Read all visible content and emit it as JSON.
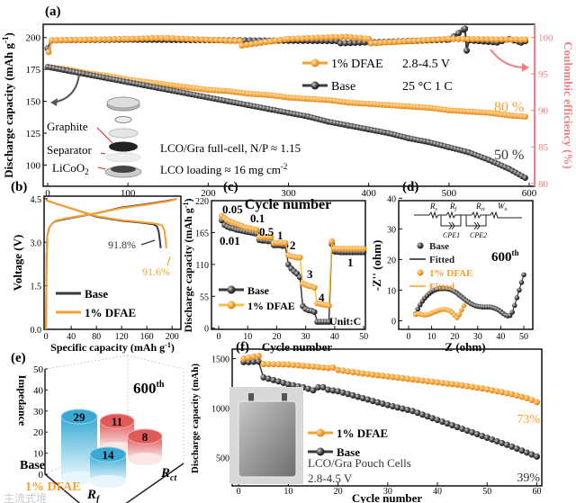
{
  "colors": {
    "dfae": "#f7a030",
    "base": "#3a3a3a",
    "ce_axis": "#f08080",
    "red_cyl": "#e05a5a",
    "blue_cyl": "#39a9d3"
  },
  "chart_data": [
    {
      "id": "a",
      "panel_label": "(a)",
      "type": "line",
      "xlabel": "Cycle number",
      "ylabel": "Discharge capacity (mAh g",
      "ylabel_sup": "-1",
      "ylabel_end": ")",
      "y2label": "Coulombic efficiency (%)",
      "xlim": [
        -5.6,
        606.7
      ],
      "ylim": [
        83.4,
        210.4
      ],
      "y2lim": [
        79.6,
        101.8
      ],
      "xticks": [
        0,
        100,
        200,
        300,
        400,
        500,
        600
      ],
      "yticks": [
        100,
        125,
        150,
        175,
        200
      ],
      "y2ticks": [
        80,
        85,
        90,
        95,
        100
      ],
      "legend": [
        {
          "name": "1% DFAE",
          "note": "2.8-4.5 V"
        },
        {
          "name": "Base",
          "note": "25 °C  1 C"
        }
      ],
      "annotations": {
        "dfae_retention": "80 %",
        "base_retention": "50 %",
        "cell_info": "LCO/Gra full-cell, N/P ≈ 1.15",
        "loading": "LCO loading ≈ 16 mg cm",
        "loading_sup": "-2",
        "graphite": "Graphite",
        "separator": "Separator",
        "licoo2": "LiCoO",
        "licoo2_sub": "2"
      },
      "series": [
        {
          "name": "1% DFAE",
          "axis": "capacity",
          "x": [
            0,
            25,
            50,
            75,
            100,
            125,
            150,
            175,
            200,
            225,
            250,
            275,
            300,
            325,
            350,
            375,
            400,
            425,
            450,
            475,
            500,
            525,
            550,
            575,
            595
          ],
          "y": [
            177,
            175,
            172,
            170,
            167,
            165,
            163,
            161,
            159,
            158,
            156,
            155,
            153,
            152,
            151,
            149,
            148,
            147,
            146,
            145,
            143,
            142,
            141,
            139,
            138
          ]
        },
        {
          "name": "Base",
          "axis": "capacity",
          "x": [
            0,
            25,
            50,
            75,
            100,
            125,
            150,
            175,
            200,
            225,
            250,
            275,
            300,
            325,
            350,
            375,
            400,
            425,
            450,
            475,
            500,
            525,
            550,
            575,
            595
          ],
          "y": [
            177,
            174,
            171,
            168,
            165,
            162,
            159,
            156,
            153,
            150,
            147,
            144,
            141,
            138,
            134,
            131,
            128,
            125,
            121,
            118,
            114,
            110,
            104,
            97,
            90
          ]
        },
        {
          "name": "Base CE",
          "axis": "ce",
          "x": [
            0,
            5,
            100,
            240,
            360,
            365,
            500,
            520,
            522,
            525,
            560,
            575,
            590,
            595
          ],
          "y": [
            98.5,
            99.6,
            99.7,
            99.6,
            99.5,
            99.2,
            99.7,
            101.2,
            98.2,
            99.6,
            99.3,
            99.8,
            99.3,
            99.5
          ]
        },
        {
          "name": "1% DFAE CE",
          "axis": "ce",
          "x": [
            1,
            5,
            100,
            130,
            150,
            240,
            242,
            300,
            372,
            400,
            403,
            500,
            595
          ],
          "y": [
            98.0,
            99.6,
            99.8,
            99.9,
            99.9,
            99.5,
            98.9,
            99.8,
            100.1,
            99.8,
            99.2,
            99.8,
            99.7
          ]
        }
      ]
    },
    {
      "id": "b",
      "panel_label": "(b)",
      "type": "line",
      "xlabel": "Specific capacity (mAh g",
      "xlabel_sup": "-1",
      "xlabel_end": ")",
      "ylabel": "Voltage (V)",
      "xlim": [
        -3,
        214
      ],
      "ylim": [
        0,
        4.59
      ],
      "xticks": [
        0,
        40,
        80,
        120,
        160,
        200
      ],
      "yticks": [
        0.0,
        1.5,
        3.0,
        4.5
      ],
      "legend": [
        {
          "name": "Base"
        },
        {
          "name": "1% DFAE"
        }
      ],
      "annotations": {
        "base_ce": "91.8%",
        "dfae_ce": "91.6%"
      },
      "series": [
        {
          "name": "Base charge",
          "x": [
            0,
            1,
            2,
            5,
            10,
            15,
            30,
            60,
            80,
            120,
            160,
            190,
            205
          ],
          "y": [
            0,
            2.5,
            3.2,
            3.5,
            3.65,
            3.73,
            3.8,
            3.92,
            4.0,
            4.2,
            4.32,
            4.42,
            4.48
          ]
        },
        {
          "name": "Base discharge",
          "x": [
            0,
            20,
            50,
            80,
            120,
            150,
            170,
            176,
            179,
            181,
            182
          ],
          "y": [
            4.45,
            4.3,
            4.1,
            3.88,
            3.74,
            3.68,
            3.62,
            3.55,
            3.35,
            3.0,
            2.8
          ]
        },
        {
          "name": "1% DFAE charge",
          "x": [
            0,
            1,
            2,
            5,
            10,
            15,
            30,
            60,
            80,
            120,
            160,
            195,
            208
          ],
          "y": [
            0,
            2.5,
            3.2,
            3.5,
            3.65,
            3.74,
            3.82,
            3.93,
            4.0,
            4.18,
            4.3,
            4.42,
            4.5
          ]
        },
        {
          "name": "1% DFAE discharge",
          "x": [
            0,
            20,
            50,
            80,
            120,
            150,
            175,
            184,
            188,
            190,
            191
          ],
          "y": [
            4.45,
            4.3,
            4.1,
            3.9,
            3.76,
            3.7,
            3.64,
            3.58,
            3.4,
            3.0,
            2.8
          ]
        }
      ]
    },
    {
      "id": "c",
      "panel_label": "(c)",
      "type": "line",
      "xlabel": "Cycle number",
      "ylabel": "Discharge capacity (mAh g",
      "ylabel_sup": "-1",
      "ylabel_end": ")",
      "xlim": [
        -2.5,
        50.6
      ],
      "ylim": [
        -2,
        220
      ],
      "xticks": [
        0,
        10,
        20,
        30,
        40,
        50
      ],
      "yticks": [
        0,
        55,
        110,
        165,
        220
      ],
      "legend": [
        {
          "name": "Base"
        },
        {
          "name": "1% DFAE"
        }
      ],
      "rate_labels": [
        "0.01",
        "0.05",
        "0.1",
        "0.5",
        "1",
        "2",
        "3",
        "4",
        "1"
      ],
      "unit": "Unit:C",
      "series": [
        {
          "name": "Base",
          "x": [
            1,
            2,
            3,
            4,
            5,
            6,
            7,
            8,
            9,
            10,
            11,
            12,
            13,
            14,
            15,
            16,
            17,
            18,
            19,
            20,
            21,
            22,
            23,
            24,
            25,
            26,
            27,
            28,
            29,
            30,
            31,
            32,
            33,
            34,
            35,
            36,
            37,
            38,
            39,
            40,
            41,
            42,
            43,
            44,
            45,
            46,
            47,
            48,
            49,
            50
          ],
          "y": [
            186,
            178,
            175,
            173,
            172,
            170,
            169,
            168,
            167,
            166,
            165,
            164,
            163,
            152,
            151,
            151,
            150,
            150,
            143,
            143,
            143,
            142,
            142,
            110,
            103,
            98,
            94,
            88,
            38,
            33,
            31,
            30,
            28,
            11,
            11,
            11,
            11,
            11,
            145,
            132,
            132,
            131,
            131,
            131,
            131,
            131,
            131,
            131,
            131,
            131
          ]
        },
        {
          "name": "1% DFAE",
          "x": [
            1,
            2,
            3,
            4,
            5,
            6,
            7,
            8,
            9,
            10,
            11,
            12,
            13,
            14,
            15,
            16,
            17,
            18,
            19,
            20,
            21,
            22,
            23,
            24,
            25,
            26,
            27,
            28,
            29,
            30,
            31,
            32,
            33,
            34,
            35,
            36,
            37,
            38,
            39,
            40,
            41,
            42,
            43,
            44,
            45,
            46,
            47,
            48,
            49,
            50
          ],
          "y": [
            194,
            190,
            186,
            184,
            182,
            180,
            178,
            176,
            174,
            173,
            172,
            171,
            170,
            157,
            157,
            157,
            157,
            157,
            147,
            147,
            147,
            147,
            147,
            126,
            124,
            123,
            122,
            122,
            77,
            75,
            73,
            72,
            70,
            43,
            42,
            41,
            40,
            39,
            150,
            138,
            137,
            137,
            137,
            137,
            137,
            137,
            137,
            137,
            137,
            137
          ]
        }
      ]
    },
    {
      "id": "d",
      "panel_label": "(d)",
      "type": "scatter",
      "xlabel": "Z (ohm)",
      "ylabel": "-Z'' (ohm)",
      "xlim": [
        -4.3,
        53.9
      ],
      "ylim": [
        -2.8,
        39.2
      ],
      "xticks": [
        0,
        10,
        20,
        30,
        40,
        50
      ],
      "yticks": [
        0,
        10,
        20,
        30,
        40
      ],
      "legend": [
        {
          "name": "Base"
        },
        {
          "name": "Fitted"
        },
        {
          "name": "1% DFAE"
        },
        {
          "name": "Fitted"
        }
      ],
      "cycle_label": "600",
      "cycle_sup": "th",
      "circuit": {
        "rs": "R",
        "rs_sub": "s",
        "rf": "R",
        "rf_sub": "f",
        "rct": "R",
        "rct_sub": "ct",
        "wo": "W",
        "wo_sub": "o",
        "cpe1": "CPE1",
        "cpe2": "CPE2"
      },
      "series": [
        {
          "name": "Base",
          "x": [
            3,
            4,
            5,
            6,
            7,
            8,
            9,
            10,
            11,
            12,
            13,
            14,
            15,
            16,
            17,
            18,
            19,
            20,
            21,
            22,
            23,
            24,
            25,
            26,
            27,
            28,
            29,
            30,
            31,
            32,
            33,
            34,
            35,
            36,
            37,
            38,
            39,
            40,
            41,
            42,
            43,
            44,
            45,
            46,
            47,
            48,
            49,
            50
          ],
          "y": [
            2.2,
            3.8,
            5.2,
            6.4,
            7.4,
            8.2,
            8.9,
            9.5,
            9.9,
            10.2,
            10.4,
            10.5,
            10.5,
            10.5,
            10.4,
            10.2,
            9.9,
            9.5,
            9.0,
            8.4,
            7.8,
            7.2,
            6.6,
            6.1,
            5.6,
            5.2,
            4.9,
            4.7,
            4.6,
            4.5,
            4.5,
            4.5,
            4.5,
            4.4,
            4.2,
            3.9,
            3.5,
            3.0,
            2.4,
            1.9,
            1.6,
            1.7,
            2.8,
            5.0,
            7.5,
            10,
            12.5,
            15
          ]
        },
        {
          "name": "1% DFAE",
          "x": [
            3,
            4,
            5,
            6,
            7,
            8,
            9,
            10,
            11,
            12,
            13,
            14,
            15,
            16,
            17,
            18,
            19,
            20,
            21,
            22,
            23,
            24
          ],
          "y": [
            2.0,
            2.3,
            2.2,
            2.0,
            1.9,
            2.0,
            2.2,
            2.5,
            2.8,
            3.1,
            3.4,
            3.6,
            3.7,
            3.7,
            3.5,
            3.2,
            2.6,
            1.8,
            1.0,
            2.0,
            3.5,
            5.0
          ]
        }
      ]
    },
    {
      "id": "e",
      "panel_label": "(e)",
      "type": "bar",
      "zlabel": "Impedance",
      "zticks": [
        0,
        10,
        20,
        30,
        40,
        50
      ],
      "cycle_label": "600",
      "cycle_sup": "th",
      "categories": [
        "Base",
        "1% DFAE"
      ],
      "components": [
        "R",
        "R"
      ],
      "component_subs": [
        "f",
        "ct"
      ],
      "values": {
        "Base_Rf": 29,
        "DFAE_Rf": 14,
        "Base_Rct": 11,
        "DFAE_Rct": 8
      },
      "value_labels": [
        "29",
        "14",
        "11",
        "8"
      ]
    },
    {
      "id": "f",
      "panel_label": "(f)",
      "type": "line",
      "xlabel": "Cycle number",
      "ylabel": "Discharge capacity (mAh)",
      "xlim": [
        -1.3,
        61
      ],
      "ylim": [
        213,
        1596
      ],
      "xticks": [
        0,
        10,
        20,
        30,
        40,
        50,
        60
      ],
      "yticks": [
        500,
        1000,
        1500
      ],
      "legend": [
        {
          "name": "1% DFAE"
        },
        {
          "name": "Base"
        }
      ],
      "annotations": {
        "dfae_retention": "73%",
        "base_retention": "39%",
        "cell": "LCO/Gra Pouch Cells",
        "window": "2.8-4.5 V"
      },
      "series": [
        {
          "name": "1% DFAE",
          "x": [
            1,
            2,
            3,
            4,
            5,
            10,
            15,
            18,
            19,
            20,
            25,
            30,
            35,
            40,
            45,
            50,
            55,
            58,
            60
          ],
          "y": [
            1500,
            1510,
            1520,
            1530,
            1445,
            1440,
            1420,
            1405,
            1410,
            1385,
            1350,
            1320,
            1290,
            1260,
            1230,
            1190,
            1140,
            1100,
            1060
          ]
        },
        {
          "name": "Base",
          "x": [
            1,
            2,
            3,
            4,
            5,
            8,
            10,
            13,
            15,
            16,
            17,
            18,
            20,
            25,
            30,
            35,
            40,
            45,
            50,
            55,
            60
          ],
          "y": [
            1465,
            1465,
            1468,
            1470,
            1310,
            1270,
            1240,
            1210,
            1180,
            1210,
            1210,
            1185,
            1170,
            1100,
            1030,
            970,
            880,
            790,
            700,
            610,
            510
          ]
        }
      ]
    }
  ],
  "watermark": "主流式境"
}
